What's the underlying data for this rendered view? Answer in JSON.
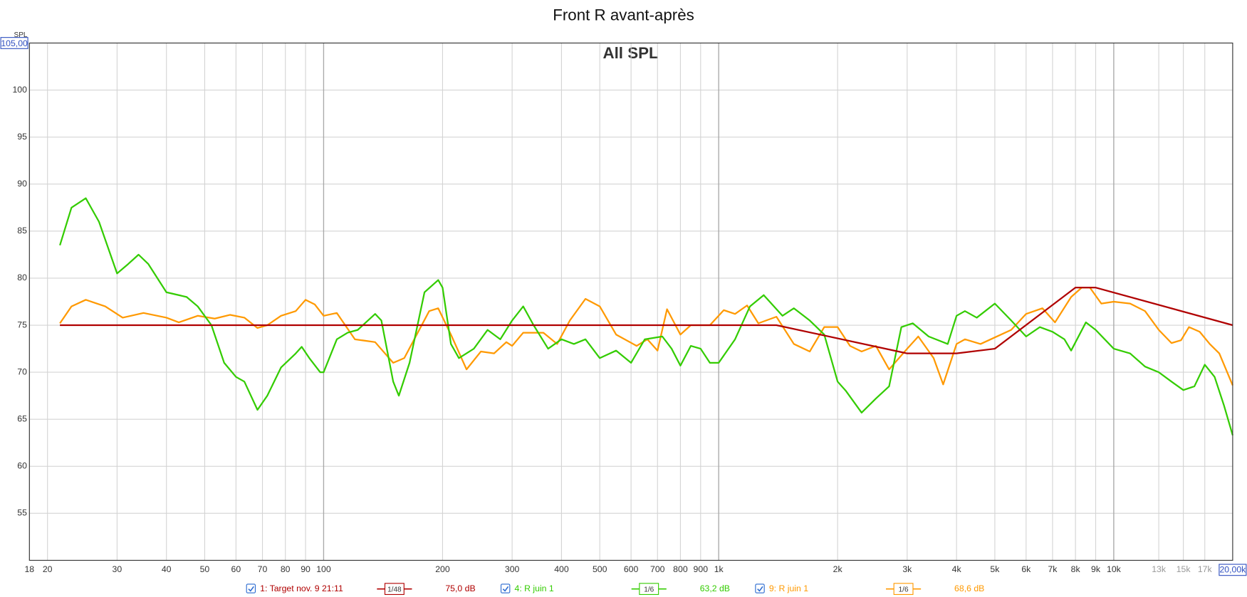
{
  "chart_data": {
    "type": "line",
    "title": "Front R avant-après",
    "subtitle": "All SPL",
    "ylabel": "SPL",
    "log_x": true,
    "grid": true,
    "xlim": [
      18,
      20000
    ],
    "ylim": [
      50,
      105
    ],
    "yticks": [
      55,
      60,
      65,
      70,
      75,
      80,
      85,
      90,
      95,
      100,
      {
        "value": 105,
        "label": "105,00"
      }
    ],
    "xticks": [
      18,
      20,
      30,
      40,
      50,
      60,
      70,
      80,
      90,
      100,
      200,
      300,
      400,
      500,
      600,
      700,
      800,
      900,
      {
        "value": 1000,
        "label": "1k"
      },
      {
        "value": 2000,
        "label": "2k"
      },
      {
        "value": 3000,
        "label": "3k"
      },
      {
        "value": 4000,
        "label": "4k"
      },
      {
        "value": 5000,
        "label": "5k"
      },
      {
        "value": 6000,
        "label": "6k"
      },
      {
        "value": 7000,
        "label": "7k"
      },
      {
        "value": 8000,
        "label": "8k"
      },
      {
        "value": 9000,
        "label": "9k"
      },
      {
        "value": 10000,
        "label": "10k"
      },
      {
        "value": 13000,
        "label": "13k"
      },
      {
        "value": 15000,
        "label": "15k"
      },
      {
        "value": 17000,
        "label": "17k"
      },
      {
        "value": 20000,
        "label": "20,00k"
      }
    ],
    "series": [
      {
        "name": "1: Target nov. 9 21:11",
        "smoothing": "1/48",
        "level_label": "75,0 dB",
        "color": "#b00000",
        "x": [
          21.5,
          1400,
          3000,
          4000,
          5000,
          8000,
          9000,
          20000
        ],
        "values": [
          75,
          75,
          72,
          72,
          72.5,
          79,
          79,
          75
        ]
      },
      {
        "name": "4: R juin 1",
        "smoothing": "1/6",
        "level_label": "63,2 dB",
        "color": "#33cc00",
        "x": [
          21.5,
          23,
          25,
          27,
          30,
          32,
          34,
          36,
          40,
          45,
          48,
          52,
          56,
          60,
          63,
          68,
          72,
          78,
          85,
          88,
          92,
          98,
          100,
          108,
          115,
          122,
          135,
          140,
          150,
          155,
          165,
          180,
          195,
          200,
          210,
          220,
          240,
          260,
          280,
          300,
          320,
          340,
          370,
          400,
          430,
          460,
          500,
          550,
          600,
          650,
          720,
          760,
          800,
          850,
          900,
          950,
          1000,
          1100,
          1200,
          1300,
          1450,
          1550,
          1700,
          1850,
          2000,
          2100,
          2300,
          2500,
          2700,
          2900,
          3100,
          3400,
          3800,
          4000,
          4200,
          4500,
          5000,
          5500,
          6000,
          6500,
          7000,
          7500,
          7800,
          8500,
          9000,
          10000,
          11000,
          12000,
          13000,
          14000,
          15000,
          16000,
          17000,
          18000,
          19000,
          20000
        ],
        "values": [
          83.5,
          87.5,
          88.5,
          86,
          80.5,
          81.5,
          82.5,
          81.5,
          78.5,
          78,
          77,
          75,
          71,
          69.5,
          69,
          66,
          67.5,
          70.5,
          72,
          72.7,
          71.5,
          70,
          70,
          73.5,
          74.2,
          74.5,
          76.2,
          75.5,
          69,
          67.5,
          71,
          78.5,
          79.8,
          79,
          73,
          71.5,
          72.5,
          74.5,
          73.5,
          75.5,
          77,
          75,
          72.5,
          73.5,
          73,
          73.5,
          71.5,
          72.3,
          71,
          73.5,
          73.8,
          72.5,
          70.7,
          72.8,
          72.5,
          71,
          71,
          73.5,
          77,
          78.2,
          76,
          76.8,
          75.5,
          74,
          69,
          68,
          65.7,
          67.2,
          68.5,
          74.8,
          75.2,
          73.8,
          73,
          76,
          76.5,
          75.8,
          77.3,
          75.5,
          73.8,
          74.8,
          74.3,
          73.5,
          72.3,
          75.3,
          74.5,
          72.5,
          72,
          70.6,
          70,
          69,
          68.1,
          68.5,
          70.8,
          69.5,
          66.5,
          63.3
        ]
      },
      {
        "name": "9: R juin 1",
        "smoothing": "1/6",
        "level_label": "68,6 dB",
        "color": "#ff9900",
        "x": [
          21.5,
          23,
          25,
          28,
          31,
          35,
          40,
          43,
          48,
          53,
          58,
          63,
          68,
          72,
          78,
          85,
          90,
          95,
          100,
          108,
          120,
          135,
          150,
          160,
          185,
          195,
          210,
          230,
          250,
          270,
          290,
          300,
          320,
          360,
          390,
          420,
          460,
          500,
          550,
          620,
          660,
          700,
          740,
          800,
          850,
          950,
          1030,
          1100,
          1180,
          1260,
          1400,
          1550,
          1700,
          1850,
          2000,
          2150,
          2300,
          2500,
          2700,
          3000,
          3200,
          3500,
          3700,
          4000,
          4200,
          4600,
          5000,
          5500,
          6000,
          6600,
          7100,
          7800,
          8300,
          8700,
          9300,
          10000,
          11000,
          12000,
          13000,
          14000,
          14800,
          15500,
          16500,
          17500,
          18500,
          20000
        ],
        "values": [
          75.2,
          77,
          77.7,
          77,
          75.8,
          76.3,
          75.8,
          75.3,
          76,
          75.7,
          76.1,
          75.8,
          74.7,
          75,
          76,
          76.5,
          77.7,
          77.2,
          76,
          76.3,
          73.5,
          73.2,
          71,
          71.5,
          76.5,
          76.8,
          74,
          70.3,
          72.2,
          72,
          73.2,
          72.8,
          74.2,
          74.2,
          73,
          75.5,
          77.8,
          77,
          74,
          72.8,
          73.5,
          72.3,
          76.7,
          74,
          75,
          75,
          76.6,
          76.2,
          77.1,
          75.2,
          75.9,
          73,
          72.2,
          74.8,
          74.8,
          72.8,
          72.2,
          72.8,
          70.3,
          72.5,
          73.8,
          71.5,
          68.7,
          73,
          73.5,
          73,
          73.7,
          74.5,
          76.2,
          76.8,
          75.3,
          78,
          79,
          79,
          77.3,
          77.5,
          77.3,
          76.5,
          74.5,
          73.1,
          73.4,
          74.8,
          74.3,
          73,
          72,
          68.6
        ]
      }
    ]
  }
}
